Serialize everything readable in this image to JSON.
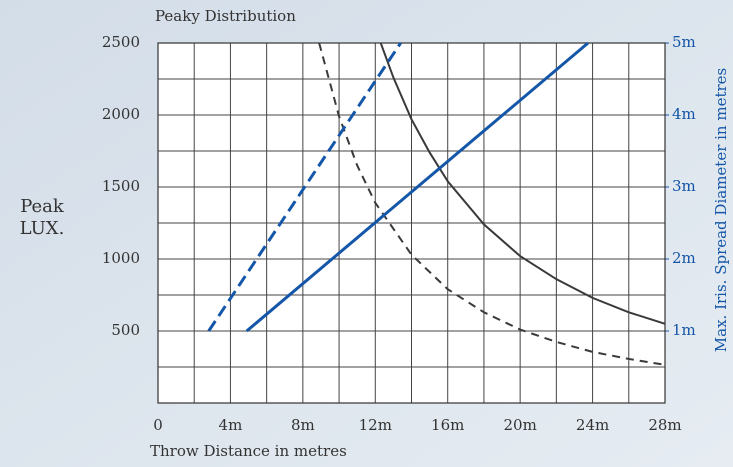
{
  "chart_data": {
    "type": "line",
    "title": "Peaky Distribution",
    "ylabel": [
      "Peak",
      "LUX."
    ],
    "xlabel": "Throw Distance in metres",
    "y2label": "Max. Iris. Spread Diameter in metres",
    "xlim": [
      0,
      28
    ],
    "xticks": [
      0,
      {
        "value": 4,
        "label": "4m"
      },
      {
        "value": 8,
        "label": "8m"
      },
      {
        "value": 12,
        "label": "12m"
      },
      {
        "value": 16,
        "label": "16m"
      },
      {
        "value": 20,
        "label": "20m"
      },
      {
        "value": 24,
        "label": "24m"
      },
      {
        "value": 28,
        "label": "28m"
      }
    ],
    "ylim": [
      0,
      2500
    ],
    "yticks": [
      500,
      1000,
      1500,
      2000,
      2500
    ],
    "y2lim": [
      0,
      5
    ],
    "y2ticks": [
      {
        "value": 1,
        "label": "1m"
      },
      {
        "value": 2,
        "label": "2m"
      },
      {
        "value": 3,
        "label": "3m"
      },
      {
        "value": 4,
        "label": "4m"
      },
      {
        "value": 5,
        "label": "5m"
      }
    ],
    "grid": true,
    "minor_grid": true,
    "series": [
      {
        "color": "#3a3a3a",
        "dashed": false,
        "axis": "y",
        "x": [
          12.3,
          13,
          14,
          15,
          16,
          18,
          20,
          22,
          24,
          26,
          28
        ],
        "values": [
          2500,
          2260,
          1970,
          1740,
          1540,
          1240,
          1020,
          860,
          730,
          630,
          550
        ]
      },
      {
        "color": "#3a3a3a",
        "dashed": true,
        "axis": "y",
        "x": [
          8.9,
          10,
          11,
          12,
          14,
          16,
          18,
          20,
          22,
          24,
          26,
          28
        ],
        "values": [
          2500,
          1990,
          1650,
          1390,
          1030,
          790,
          630,
          510,
          424,
          355,
          306,
          265
        ]
      },
      {
        "color": "#1456a8",
        "dashed": false,
        "axis": "y2",
        "x": [
          4.9,
          23.75
        ],
        "values": [
          1,
          5
        ]
      },
      {
        "color": "#1456a8",
        "dashed": true,
        "axis": "y2",
        "x": [
          2.8,
          13.4
        ],
        "values": [
          1,
          5
        ]
      }
    ]
  }
}
